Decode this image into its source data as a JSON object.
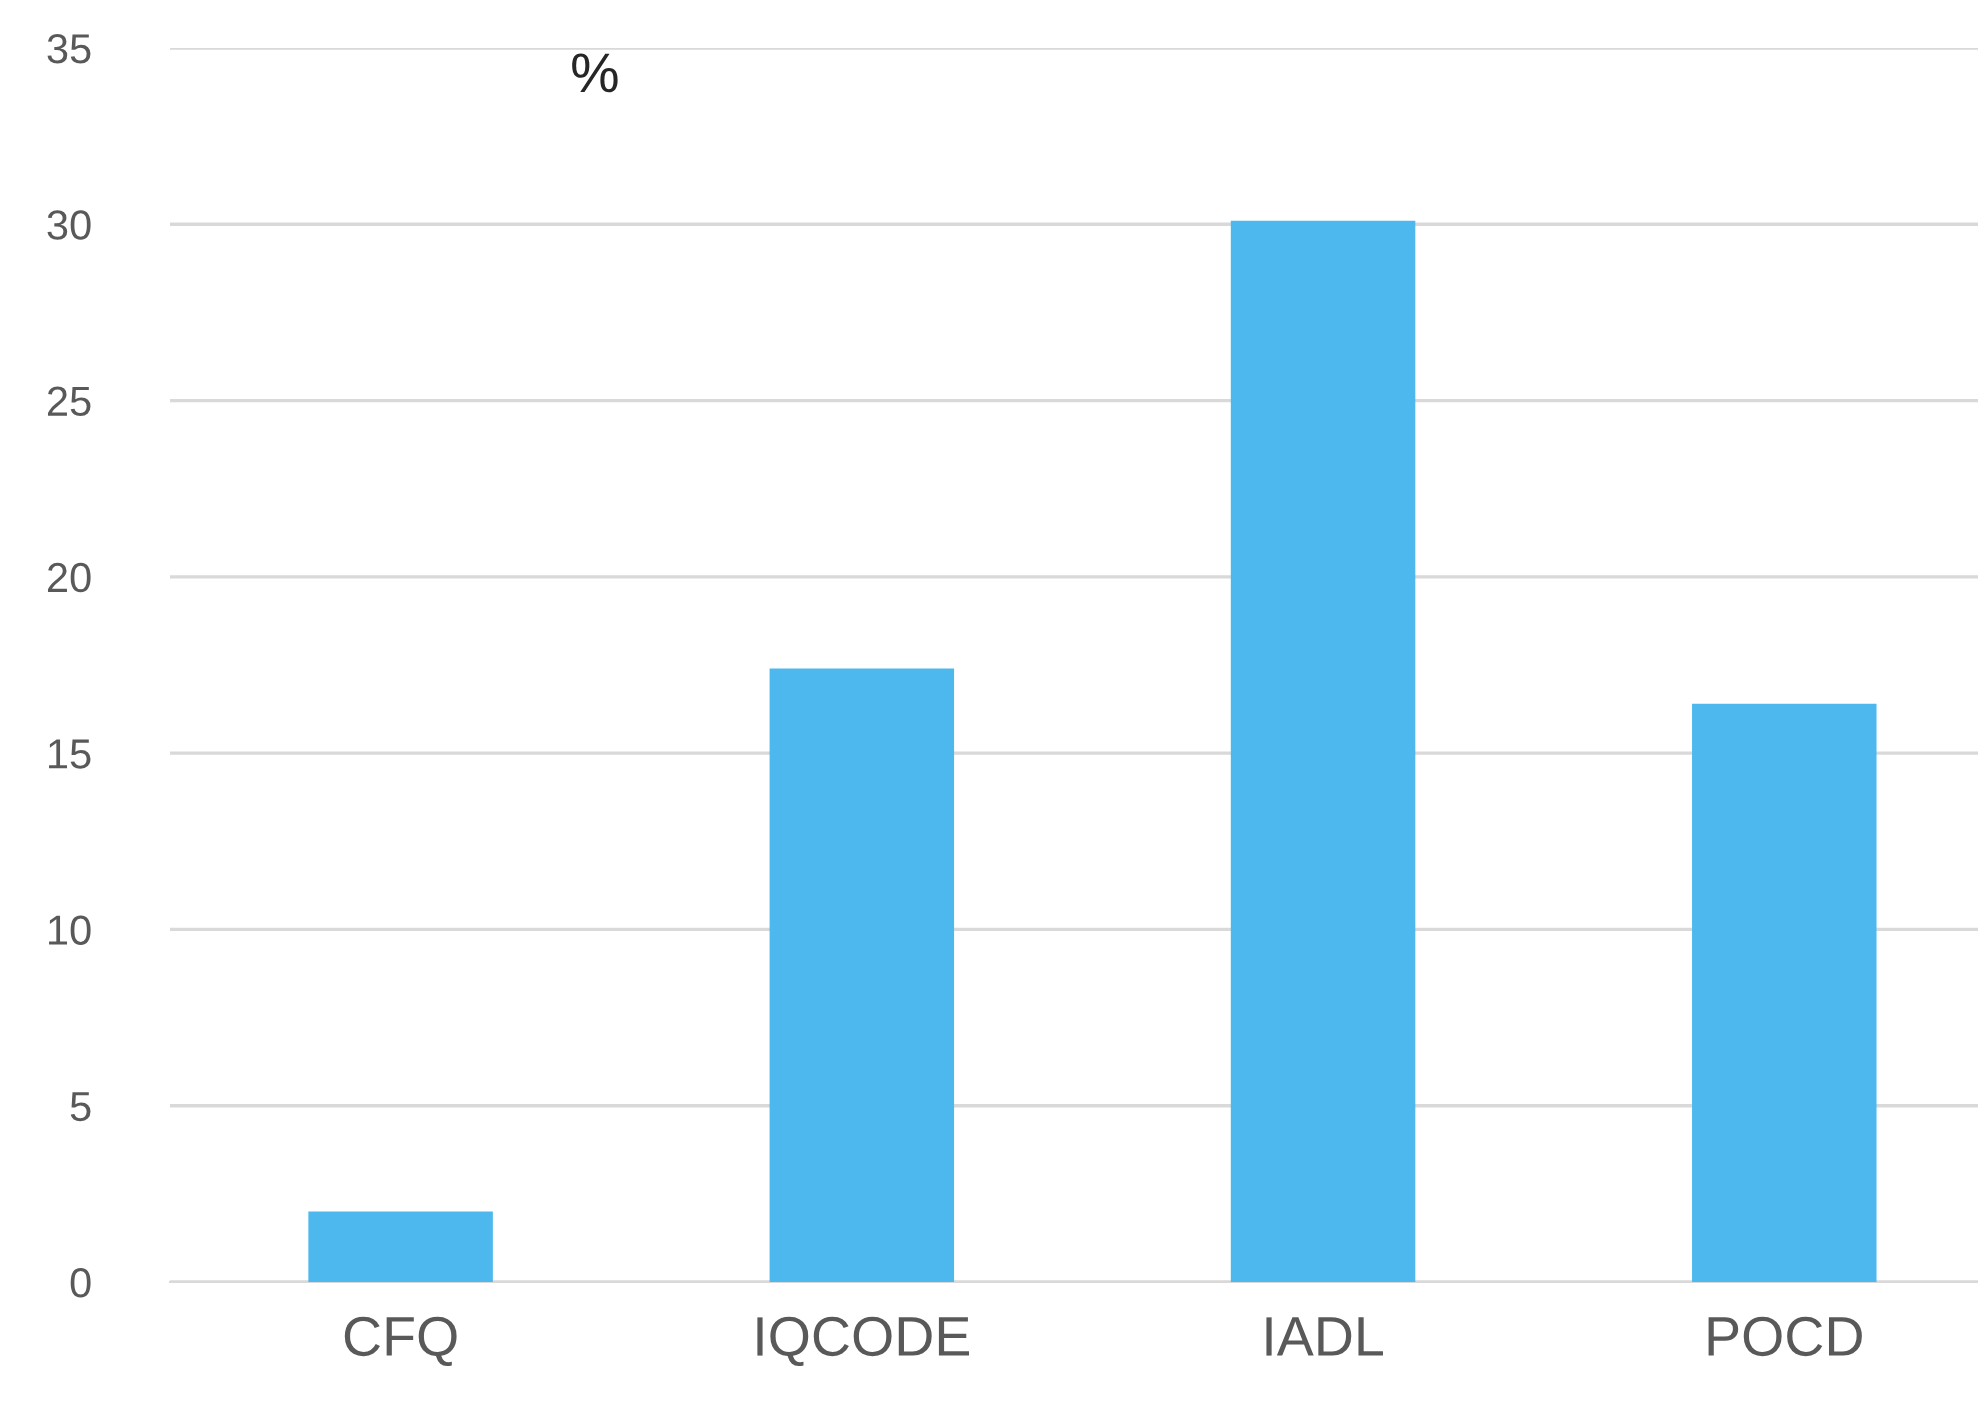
{
  "chart_data": {
    "type": "bar",
    "ylabel": "%",
    "categories": [
      "CFQ",
      "IQCODE",
      "IADL",
      "POCD"
    ],
    "values": [
      2.0,
      17.4,
      30.1,
      16.4
    ],
    "color": "#4db8ee",
    "ylim": [
      0,
      35
    ],
    "yticks": [
      0,
      5,
      10,
      15,
      20,
      25,
      30,
      35
    ],
    "grid": "y",
    "legend": false
  }
}
